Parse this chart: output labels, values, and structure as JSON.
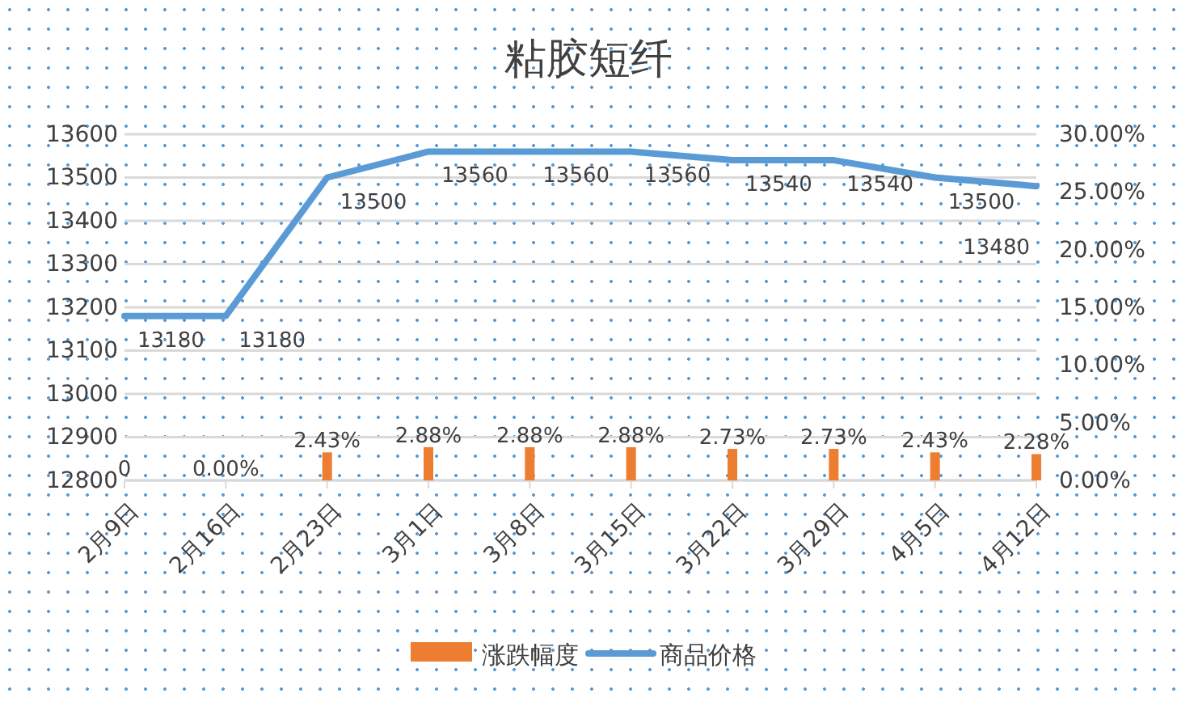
{
  "chart_data": {
    "type": "bar",
    "title": "粘胶短纤",
    "categories": [
      "2月9日",
      "2月16日",
      "2月23日",
      "3月1日",
      "3月8日",
      "3月15日",
      "3月22日",
      "3月29日",
      "4月5日",
      "4月12日"
    ],
    "series": [
      {
        "name": "涨跌幅度",
        "axis": "y2",
        "color": "#ed7d31",
        "values": [
          0,
          0,
          2.43,
          2.88,
          2.88,
          2.88,
          2.73,
          2.73,
          2.43,
          2.28
        ],
        "value_labels": [
          "0",
          "0.00%",
          "2.43%",
          "2.88%",
          "2.88%",
          "2.88%",
          "2.73%",
          "2.73%",
          "2.43%",
          "2.28%"
        ]
      },
      {
        "name": "商品价格",
        "type": "line",
        "axis": "y",
        "color": "#5b9bd5",
        "values": [
          13180,
          13180,
          13500,
          13560,
          13560,
          13560,
          13540,
          13540,
          13500,
          13480
        ],
        "value_labels": [
          "13180",
          "13180",
          "13500",
          "13560",
          "13560",
          "13560",
          "13540",
          "13540",
          "13500",
          "13480"
        ]
      }
    ],
    "ylim": [
      12800,
      13600
    ],
    "yticks": [
      12800,
      12900,
      13000,
      13100,
      13200,
      13300,
      13400,
      13500,
      13600
    ],
    "y2lim": [
      0,
      30
    ],
    "y2ticks": [
      {
        "value": 0,
        "label": "0.00%"
      },
      {
        "value": 5,
        "label": "5.00%"
      },
      {
        "value": 10,
        "label": "10.00%"
      },
      {
        "value": 15,
        "label": "15.00%"
      },
      {
        "value": 20,
        "label": "20.00%"
      },
      {
        "value": 25,
        "label": "25.00%"
      },
      {
        "value": 30,
        "label": "30.00%"
      }
    ],
    "grid": "y",
    "legend": "bottom",
    "marker": "none"
  }
}
